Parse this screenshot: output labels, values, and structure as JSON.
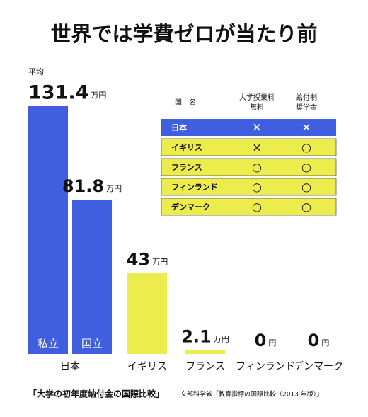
{
  "chart_data": {
    "type": "bar",
    "title": "世界では学費ゼロが当たり前",
    "value_note": "平均",
    "categories": [
      "日本",
      null,
      "イギリス",
      "フランス",
      "フィンランド",
      "デンマーク"
    ],
    "bar_labels": [
      "私立",
      "国立",
      null,
      null,
      null,
      null
    ],
    "values": [
      131.4,
      81.8,
      43,
      2.1,
      0,
      0
    ],
    "value_units": [
      "万円",
      "万円",
      "万円",
      "万円",
      "円",
      "円"
    ],
    "colors": [
      "#3f5ee0",
      "#3f5ee0",
      "#ecec4c",
      "#ecec4c",
      "#ecec4c",
      "#ecec4c"
    ],
    "caption": "「大学の初年度納付金の国際比較」",
    "source": "文部科学省「教育指標の国際比較（2013 年版）」"
  },
  "table": {
    "header": [
      "国　名",
      "大学授業料",
      "無料",
      "給付制",
      "奨学金"
    ],
    "rows": [
      [
        "日本",
        "✕",
        "✕"
      ],
      [
        "イギリス",
        "×",
        "○"
      ],
      [
        "フランス",
        "○",
        "○"
      ],
      [
        "フィンランド",
        "○",
        "○"
      ],
      [
        "デンマーク",
        "○",
        "○"
      ]
    ],
    "row_colors": [
      "#3f5ee0",
      "#ecec4c",
      "#ecec4c",
      "#ecec4c",
      "#ecec4c"
    ]
  }
}
